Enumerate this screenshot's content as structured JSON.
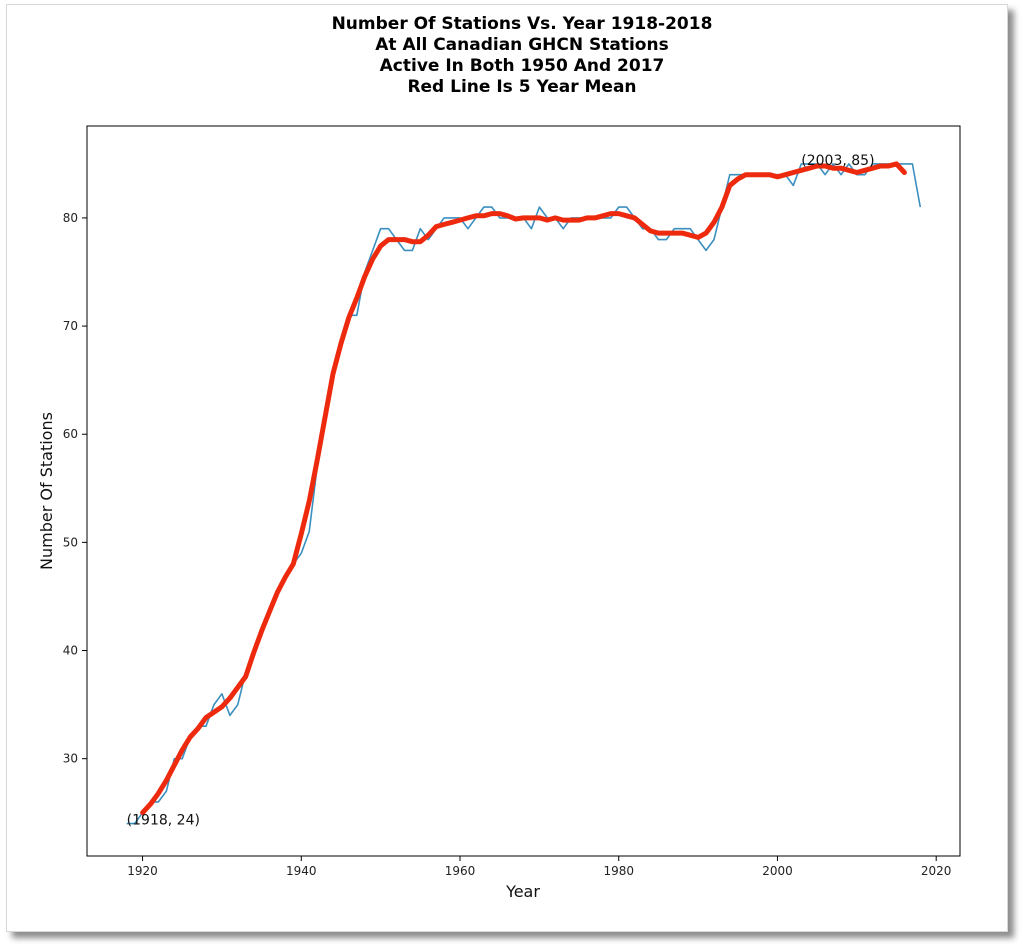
{
  "chart_data": {
    "type": "line",
    "title_lines": [
      "Number Of Stations Vs. Year 1918-2018",
      "At All Canadian GHCN Stations",
      "Active In Both 1950 And 2017",
      "Red Line Is 5 Year Mean"
    ],
    "xlabel": "Year",
    "ylabel": "Number Of Stations",
    "xlim": [
      1913,
      2023
    ],
    "ylim": [
      21,
      88.5
    ],
    "xticks": [
      1920,
      1940,
      1960,
      1980,
      2000,
      2020
    ],
    "yticks": [
      30,
      40,
      50,
      60,
      70,
      80
    ],
    "grid": false,
    "colors": {
      "raw": "#3a8fbf",
      "mean": "#ee2a0e"
    },
    "annotations": [
      {
        "text": "(1918, 24)",
        "x": 1918,
        "y": 24
      },
      {
        "text": "(2003, 85)",
        "x": 2003,
        "y": 85
      }
    ],
    "series": [
      {
        "key": "raw",
        "x": [
          1918,
          1919,
          1920,
          1921,
          1922,
          1923,
          1924,
          1925,
          1926,
          1927,
          1928,
          1929,
          1930,
          1931,
          1932,
          1933,
          1934,
          1935,
          1936,
          1937,
          1938,
          1939,
          1940,
          1941,
          1942,
          1943,
          1944,
          1945,
          1946,
          1947,
          1948,
          1949,
          1950,
          1951,
          1952,
          1953,
          1954,
          1955,
          1956,
          1957,
          1958,
          1959,
          1960,
          1961,
          1962,
          1963,
          1964,
          1965,
          1966,
          1967,
          1968,
          1969,
          1970,
          1971,
          1972,
          1973,
          1974,
          1975,
          1976,
          1977,
          1978,
          1979,
          1980,
          1981,
          1982,
          1983,
          1984,
          1985,
          1986,
          1987,
          1988,
          1989,
          1990,
          1991,
          1992,
          1993,
          1994,
          1995,
          1996,
          1997,
          1998,
          1999,
          2000,
          2001,
          2002,
          2003,
          2004,
          2005,
          2006,
          2007,
          2008,
          2009,
          2010,
          2011,
          2012,
          2013,
          2014,
          2015,
          2016,
          2017,
          2018
        ],
        "y": [
          24,
          24,
          25,
          26,
          26,
          27,
          30,
          30,
          32,
          33,
          33,
          35,
          36,
          34,
          35,
          38,
          40,
          42,
          44,
          45,
          47,
          48,
          49,
          51,
          57,
          62,
          66,
          68,
          71,
          71,
          75,
          77,
          79,
          79,
          78,
          77,
          77,
          79,
          78,
          79,
          80,
          80,
          80,
          79,
          80,
          81,
          81,
          80,
          80,
          80,
          80,
          79,
          81,
          80,
          80,
          79,
          80,
          80,
          80,
          80,
          80,
          80,
          81,
          81,
          80,
          79,
          79,
          78,
          78,
          79,
          79,
          79,
          78,
          77,
          78,
          81,
          84,
          84,
          84,
          84,
          84,
          84,
          84,
          84,
          83,
          85,
          85,
          85,
          84,
          85,
          84,
          85,
          84,
          84,
          85,
          85,
          85,
          85,
          85,
          85,
          81
        ]
      },
      {
        "key": "mean",
        "x": [
          1920,
          1921,
          1922,
          1923,
          1924,
          1925,
          1926,
          1927,
          1928,
          1929,
          1930,
          1931,
          1932,
          1933,
          1934,
          1935,
          1936,
          1937,
          1938,
          1939,
          1940,
          1941,
          1942,
          1943,
          1944,
          1945,
          1946,
          1947,
          1948,
          1949,
          1950,
          1951,
          1952,
          1953,
          1954,
          1955,
          1956,
          1957,
          1958,
          1959,
          1960,
          1961,
          1962,
          1963,
          1964,
          1965,
          1966,
          1967,
          1968,
          1969,
          1970,
          1971,
          1972,
          1973,
          1974,
          1975,
          1976,
          1977,
          1978,
          1979,
          1980,
          1981,
          1982,
          1983,
          1984,
          1985,
          1986,
          1987,
          1988,
          1989,
          1990,
          1991,
          1992,
          1993,
          1994,
          1995,
          1996,
          1997,
          1998,
          1999,
          2000,
          2001,
          2002,
          2003,
          2004,
          2005,
          2006,
          2007,
          2008,
          2009,
          2010,
          2011,
          2012,
          2013,
          2014,
          2015,
          2016
        ],
        "y": [
          25.0,
          25.8,
          26.8,
          28.0,
          29.4,
          30.8,
          32.0,
          32.8,
          33.8,
          34.3,
          34.8,
          35.6,
          36.6,
          37.6,
          39.8,
          41.8,
          43.6,
          45.4,
          46.8,
          48.0,
          50.8,
          53.8,
          57.6,
          61.6,
          65.6,
          68.4,
          70.8,
          72.6,
          74.6,
          76.2,
          77.4,
          78.0,
          78.0,
          78.0,
          77.8,
          77.8,
          78.4,
          79.2,
          79.4,
          79.6,
          79.8,
          80.0,
          80.2,
          80.2,
          80.4,
          80.4,
          80.2,
          79.9,
          80.0,
          80.0,
          80.0,
          79.8,
          80.0,
          79.8,
          79.8,
          79.8,
          80.0,
          80.0,
          80.2,
          80.4,
          80.4,
          80.2,
          80.0,
          79.4,
          78.8,
          78.6,
          78.6,
          78.6,
          78.6,
          78.4,
          78.2,
          78.6,
          79.6,
          81.0,
          83.0,
          83.6,
          84.0,
          84.0,
          84.0,
          84.0,
          83.8,
          84.0,
          84.2,
          84.4,
          84.6,
          84.8,
          84.8,
          84.6,
          84.6,
          84.4,
          84.2,
          84.4,
          84.6,
          84.8,
          84.8,
          85.0,
          84.2
        ]
      }
    ]
  }
}
